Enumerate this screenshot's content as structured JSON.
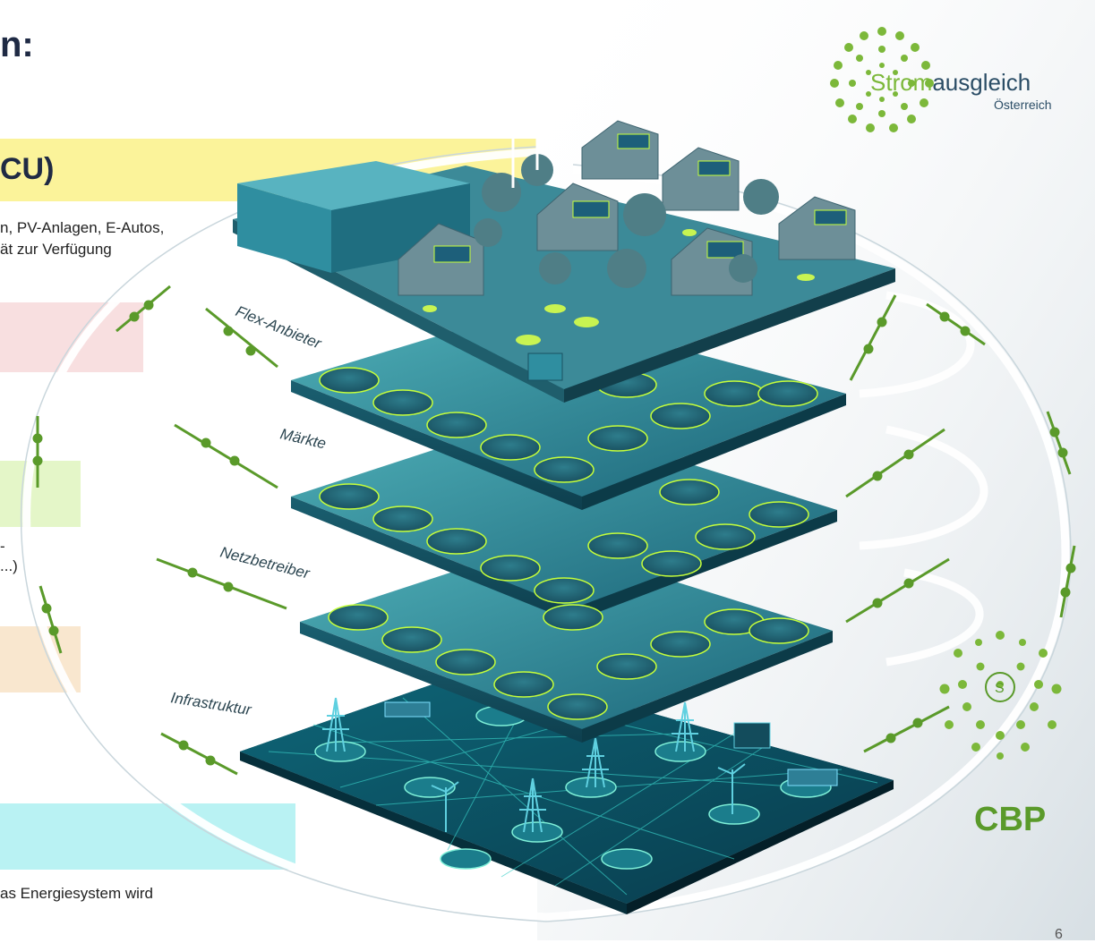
{
  "slide": {
    "title_fragment": "n:",
    "page_number": "6"
  },
  "left_bands": [
    {
      "color": "#fbf39a",
      "heading": "CU)",
      "lines": [
        "n, PV-Anlagen, E-Autos,",
        "ät zur Verfügung"
      ]
    },
    {
      "color": "#f8dfe0",
      "heading": "",
      "lines": []
    },
    {
      "color": "#e4f6c8",
      "heading": "",
      "lines": [
        "-",
        "...)"
      ]
    },
    {
      "color": "#f9e7cf",
      "heading": "",
      "lines": []
    },
    {
      "color": "#b9f2f3",
      "heading": "",
      "lines": [
        "as Energiesystem wird"
      ]
    }
  ],
  "layers": {
    "flex": "Flex-Anbieter",
    "markets": "Märkte",
    "grid_operators": "Netzbetreiber",
    "infrastructure": "Infrastruktur"
  },
  "logo": {
    "strom": "Strom",
    "ausgleich": "ausgleich",
    "country": "Österreich",
    "emblem_letter": "S"
  },
  "cbp_label": "CBP",
  "colors": {
    "green_dark": "#5a9a2a",
    "green_light": "#8cc63f",
    "teal_dark": "#11566b",
    "teal_mid": "#2f8ea0",
    "glow": "#c6ff3a"
  }
}
